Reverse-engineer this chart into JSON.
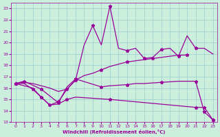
{
  "xlabel": "Windchill (Refroidissement éolien,°C)",
  "background_color": "#cceedd",
  "line_color": "#990099",
  "grid_color": "#99cccc",
  "xlim": [
    -0.5,
    23.5
  ],
  "ylim": [
    13,
    23.5
  ],
  "yticks": [
    13,
    14,
    15,
    16,
    17,
    18,
    19,
    20,
    21,
    22,
    23
  ],
  "xticks": [
    0,
    1,
    2,
    3,
    4,
    5,
    6,
    7,
    8,
    9,
    10,
    11,
    12,
    13,
    14,
    15,
    16,
    17,
    18,
    19,
    20,
    21,
    22,
    23
  ],
  "line1_x": [
    0,
    1,
    3,
    5,
    6,
    7,
    10,
    11,
    13,
    14,
    15,
    17,
    19,
    20,
    21,
    22,
    23
  ],
  "line1_y": [
    16.4,
    16.6,
    15.9,
    14.7,
    16.1,
    16.8,
    16.1,
    16.2,
    16.3,
    16.4,
    16.4,
    16.5,
    16.6,
    16.6,
    16.6,
    13.9,
    13.2
  ],
  "line2_x": [
    0,
    2,
    3,
    4,
    5,
    6,
    7,
    8,
    9,
    10,
    11,
    12,
    13,
    14,
    15,
    16,
    17,
    18,
    19,
    20,
    21,
    22,
    23
  ],
  "line2_y": [
    16.4,
    16.0,
    15.2,
    14.5,
    14.8,
    15.9,
    16.7,
    19.8,
    21.5,
    19.8,
    23.2,
    19.5,
    19.3,
    19.5,
    18.6,
    18.7,
    19.4,
    19.5,
    18.8,
    20.6,
    19.5,
    19.5,
    19.0
  ],
  "line3_x": [
    0,
    1,
    2,
    3,
    4,
    5,
    6,
    7,
    8,
    9,
    10,
    11,
    12,
    13,
    14,
    15,
    16,
    17,
    18,
    19,
    20
  ],
  "line3_y": [
    16.4,
    16.5,
    16.4,
    16.2,
    16.0,
    15.7,
    15.9,
    16.7,
    17.1,
    17.3,
    17.6,
    17.9,
    18.1,
    18.3,
    18.4,
    18.5,
    18.6,
    18.7,
    18.8,
    18.9,
    18.9
  ],
  "line4_x": [
    0,
    1,
    2,
    3,
    4,
    5,
    6,
    7,
    11,
    21,
    22,
    23
  ],
  "line4_y": [
    16.4,
    16.4,
    15.9,
    15.2,
    14.5,
    14.6,
    15.0,
    15.2,
    15.0,
    14.3,
    14.3,
    13.2
  ],
  "line1_mx": [
    0,
    1,
    3,
    5,
    7,
    10,
    13,
    17,
    21,
    22,
    23
  ],
  "line1_my": [
    16.4,
    16.6,
    15.9,
    14.7,
    16.8,
    16.1,
    16.3,
    16.5,
    16.6,
    13.9,
    13.2
  ],
  "line2_mx": [
    0,
    3,
    5,
    7,
    9,
    11,
    13,
    15,
    17,
    19,
    21
  ],
  "line2_my": [
    16.4,
    15.2,
    14.8,
    16.7,
    21.5,
    23.2,
    19.3,
    18.6,
    19.4,
    18.8,
    19.5
  ],
  "line3_mx": [
    0,
    6,
    10,
    13,
    16,
    20
  ],
  "line3_my": [
    16.4,
    15.9,
    17.6,
    18.3,
    18.6,
    18.9
  ],
  "line4_mx": [
    0,
    2,
    4,
    6,
    11,
    21,
    22,
    23
  ],
  "line4_my": [
    16.4,
    15.9,
    14.5,
    15.0,
    15.0,
    14.3,
    14.3,
    13.2
  ]
}
